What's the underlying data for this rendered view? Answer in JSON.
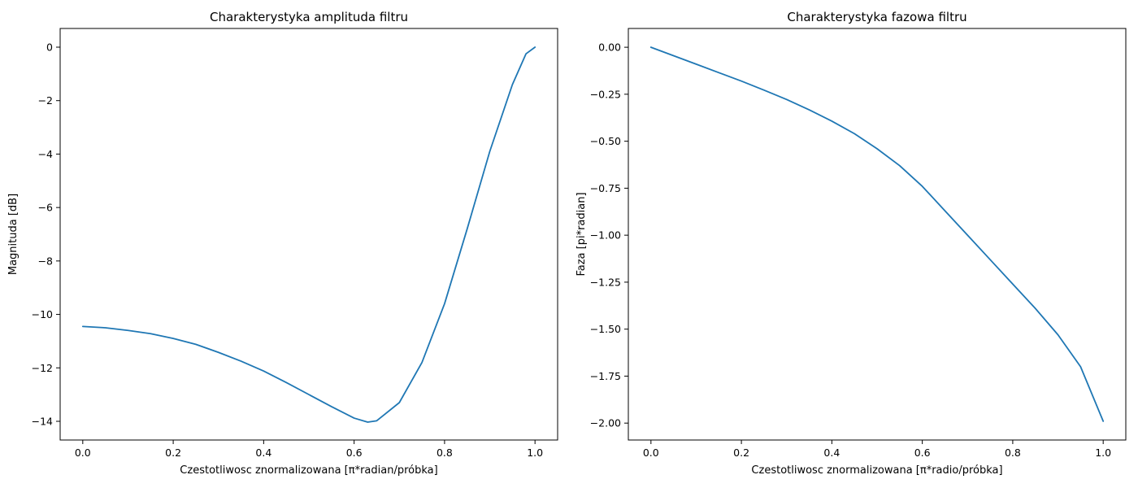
{
  "chart_data": [
    {
      "type": "line",
      "title": "Charakterystyka amplituda filtru",
      "xlabel": "Czestotliwosc znormalizowana [π*radian/próbka]",
      "ylabel": "Magnituda [dB]",
      "xlim": [
        -0.05,
        1.05
      ],
      "ylim": [
        -14.7,
        0.7
      ],
      "xticks": [
        0.0,
        0.2,
        0.4,
        0.6,
        0.8,
        1.0
      ],
      "xtick_labels": [
        "0.0",
        "0.2",
        "0.4",
        "0.6",
        "0.8",
        "1.0"
      ],
      "yticks": [
        0,
        -2,
        -4,
        -6,
        -8,
        -10,
        -12,
        -14
      ],
      "ytick_labels": [
        "0",
        "−2",
        "−4",
        "−6",
        "−8",
        "−10",
        "−12",
        "−14"
      ],
      "grid": false,
      "series": [
        {
          "color": "#1f77b4",
          "x": [
            0.0,
            0.05,
            0.1,
            0.15,
            0.2,
            0.25,
            0.3,
            0.35,
            0.4,
            0.45,
            0.5,
            0.55,
            0.6,
            0.63,
            0.65,
            0.7,
            0.75,
            0.8,
            0.85,
            0.9,
            0.95,
            0.98,
            1.0
          ],
          "y": [
            -10.45,
            -10.5,
            -10.6,
            -10.72,
            -10.9,
            -11.12,
            -11.42,
            -11.75,
            -12.12,
            -12.55,
            -13.0,
            -13.45,
            -13.88,
            -14.03,
            -13.98,
            -13.3,
            -11.8,
            -9.6,
            -6.8,
            -3.9,
            -1.4,
            -0.25,
            0.0
          ]
        }
      ]
    },
    {
      "type": "line",
      "title": "Charakterystyka fazowa filtru",
      "xlabel": "Czestotliwosc znormalizowana [π*radio/próbka]",
      "ylabel": "Faza [pi*radian]",
      "xlim": [
        -0.05,
        1.05
      ],
      "ylim": [
        -2.09,
        0.1
      ],
      "xticks": [
        0.0,
        0.2,
        0.4,
        0.6,
        0.8,
        1.0
      ],
      "xtick_labels": [
        "0.0",
        "0.2",
        "0.4",
        "0.6",
        "0.8",
        "1.0"
      ],
      "yticks": [
        0.0,
        -0.25,
        -0.5,
        -0.75,
        -1.0,
        -1.25,
        -1.5,
        -1.75,
        -2.0
      ],
      "ytick_labels": [
        "0.00",
        "−0.25",
        "−0.50",
        "−0.75",
        "−1.00",
        "−1.25",
        "−1.50",
        "−1.75",
        "−2.00"
      ],
      "grid": false,
      "series": [
        {
          "color": "#1f77b4",
          "x": [
            0.0,
            0.05,
            0.1,
            0.15,
            0.2,
            0.25,
            0.3,
            0.35,
            0.4,
            0.45,
            0.5,
            0.55,
            0.6,
            0.65,
            0.7,
            0.75,
            0.8,
            0.85,
            0.9,
            0.95,
            1.0
          ],
          "y": [
            0.0,
            -0.045,
            -0.09,
            -0.135,
            -0.18,
            -0.228,
            -0.278,
            -0.333,
            -0.393,
            -0.46,
            -0.54,
            -0.63,
            -0.74,
            -0.87,
            -1.0,
            -1.13,
            -1.26,
            -1.39,
            -1.53,
            -1.7,
            -1.99
          ]
        }
      ]
    }
  ]
}
